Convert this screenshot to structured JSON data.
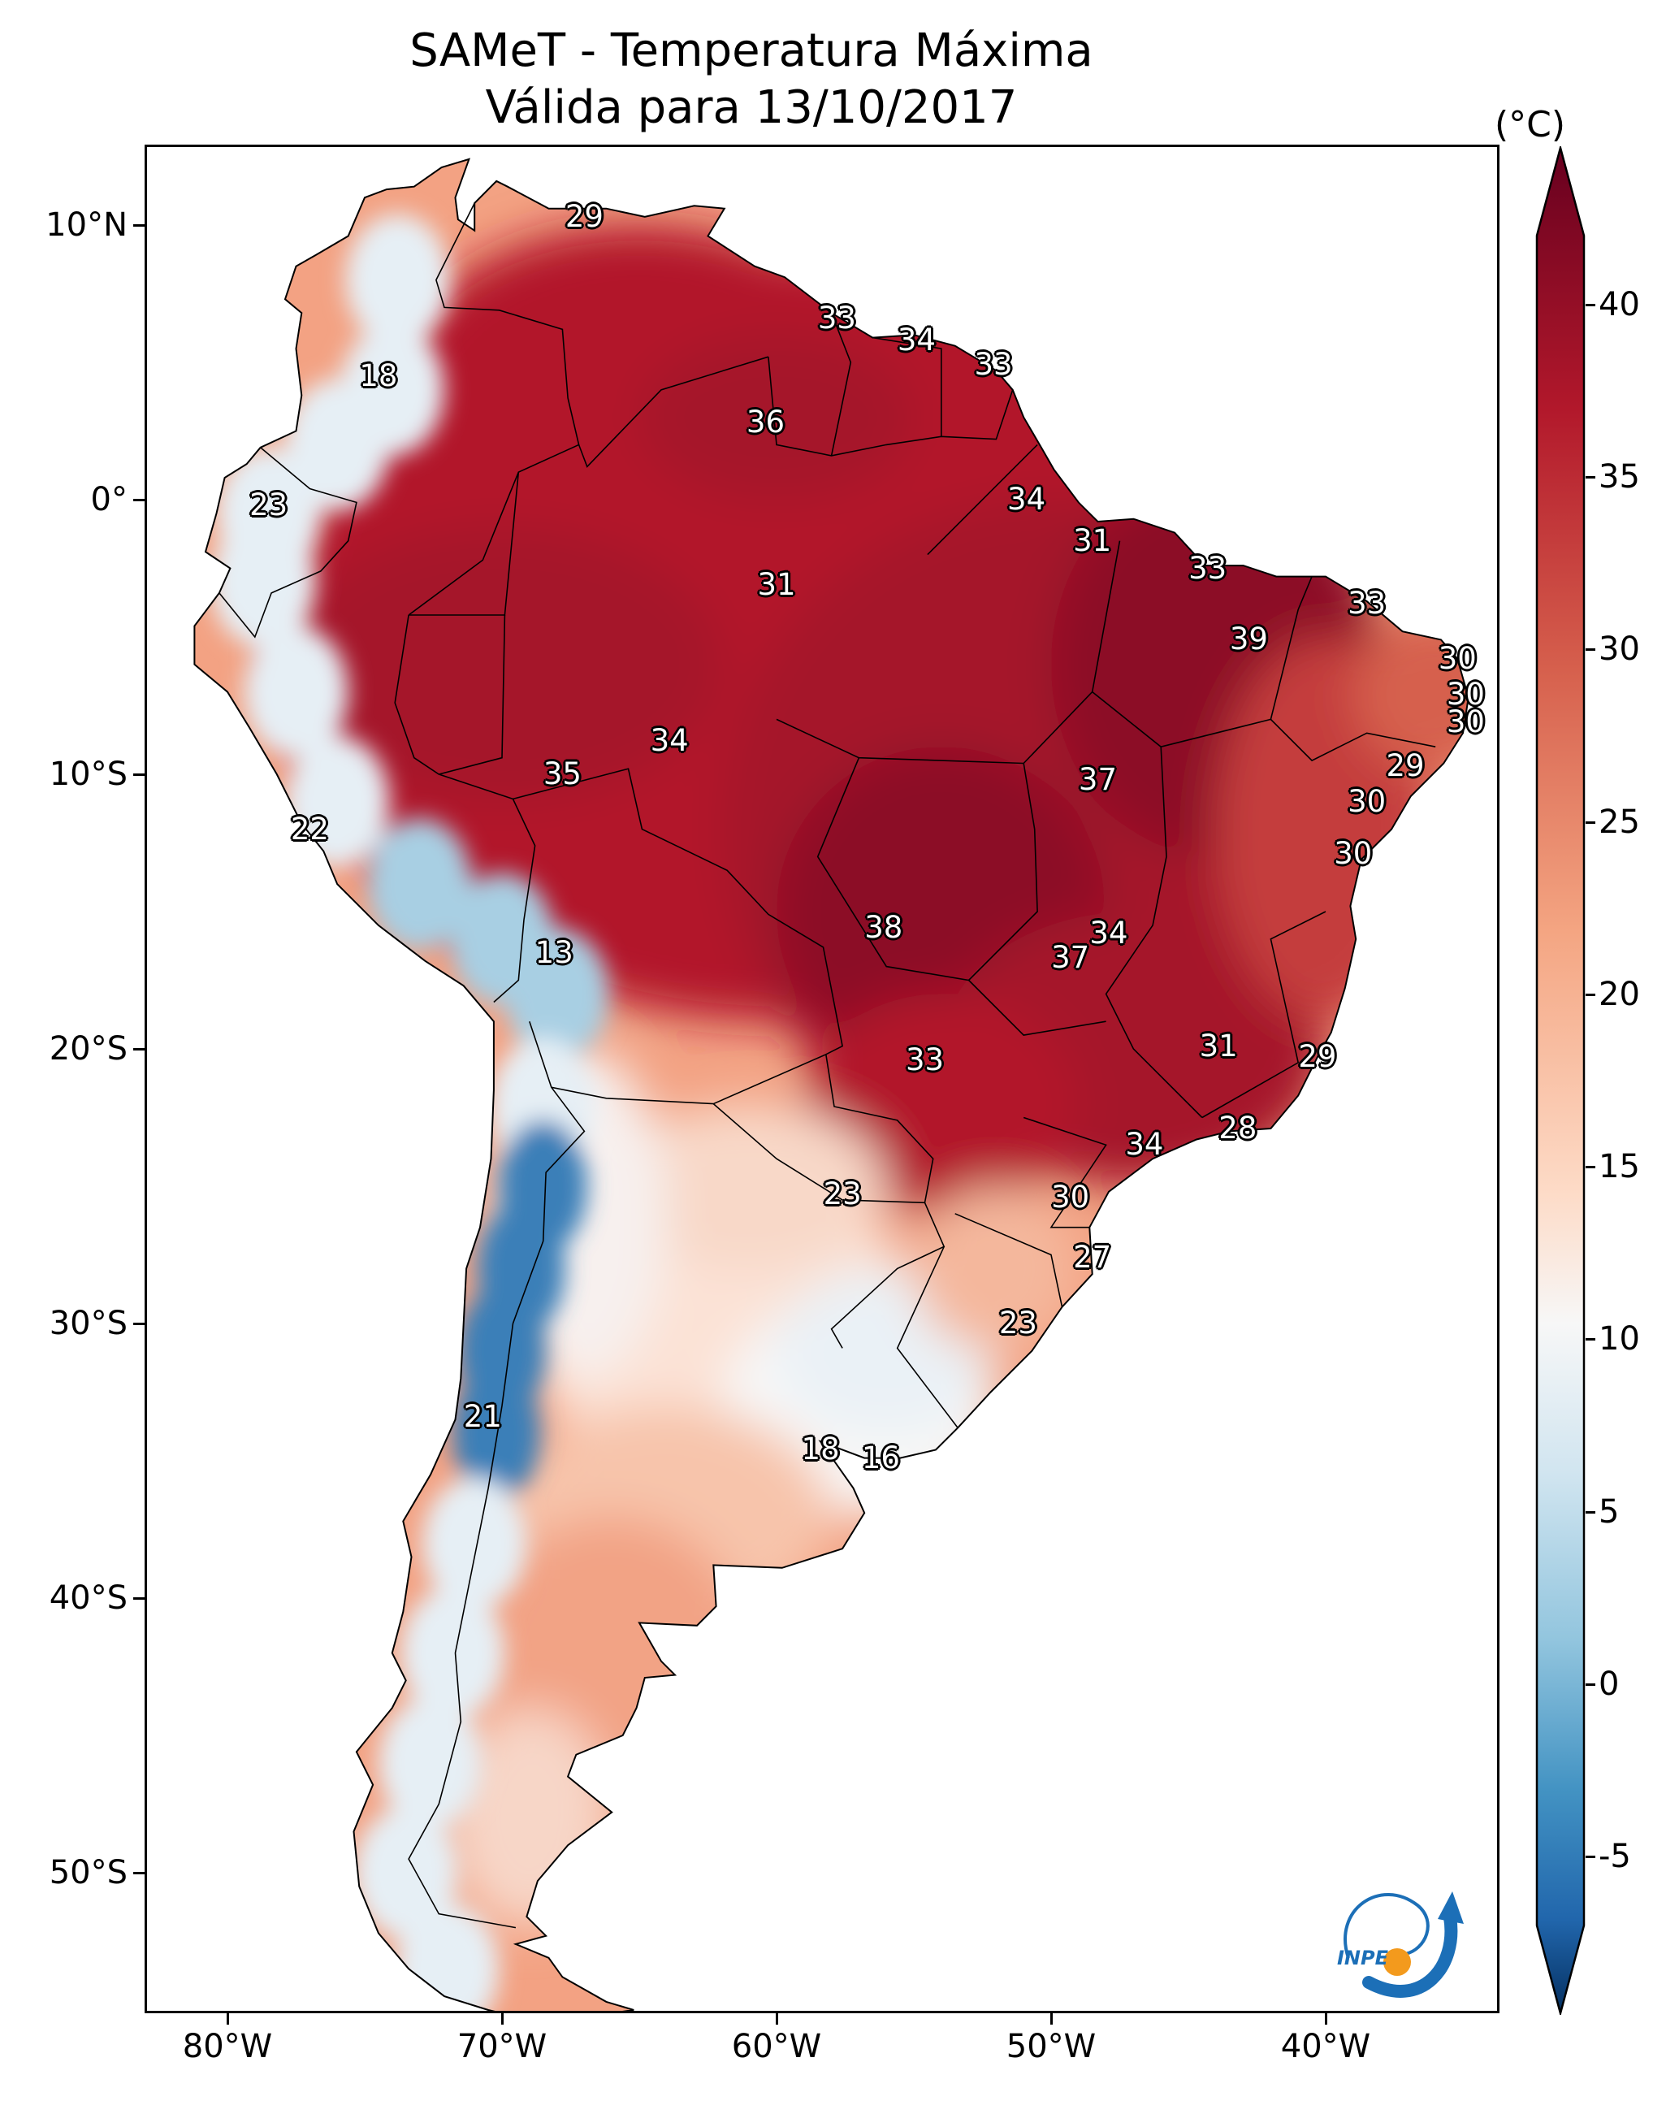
{
  "header": {
    "title_line1": "SAMeT - Temperatura Máxima",
    "title_line2": "Válida para 13/10/2017"
  },
  "axes": {
    "lat_labels": [
      "10°N",
      "0°",
      "10°S",
      "20°S",
      "30°S",
      "40°S",
      "50°S"
    ],
    "lon_labels": [
      "80°W",
      "70°W",
      "60°W",
      "50°W",
      "40°W"
    ]
  },
  "colorbar": {
    "unit": "(°C)",
    "ticks": [
      "40",
      "35",
      "30",
      "25",
      "20",
      "15",
      "10",
      "5",
      "0",
      "-5"
    ],
    "range": [
      -7,
      42
    ],
    "colors": {
      "max": "#67001f",
      "warm": "#d6604d",
      "mid": "#f7f7f7",
      "cool": "#92c5de",
      "min": "#053061"
    }
  },
  "city_values": [
    {
      "v": "29",
      "lon": -67,
      "lat": 10.3
    },
    {
      "v": "18",
      "lon": -74.5,
      "lat": 4.5
    },
    {
      "v": "33",
      "lon": -57.8,
      "lat": 6.6
    },
    {
      "v": "34",
      "lon": -54.9,
      "lat": 5.8
    },
    {
      "v": "33",
      "lon": -52.1,
      "lat": 4.9
    },
    {
      "v": "36",
      "lon": -60.4,
      "lat": 2.8
    },
    {
      "v": "23",
      "lon": -78.5,
      "lat": -0.2
    },
    {
      "v": "34",
      "lon": -50.9,
      "lat": 0.0
    },
    {
      "v": "31",
      "lon": -48.5,
      "lat": -1.5
    },
    {
      "v": "33",
      "lon": -44.3,
      "lat": -2.5
    },
    {
      "v": "31",
      "lon": -60.0,
      "lat": -3.1
    },
    {
      "v": "33",
      "lon": -38.5,
      "lat": -3.8
    },
    {
      "v": "39",
      "lon": -42.8,
      "lat": -5.1
    },
    {
      "v": "30",
      "lon": -35.2,
      "lat": -5.8
    },
    {
      "v": "30",
      "lon": -34.9,
      "lat": -7.1
    },
    {
      "v": "30",
      "lon": -34.9,
      "lat": -8.1
    },
    {
      "v": "34",
      "lon": -63.9,
      "lat": -8.8
    },
    {
      "v": "35",
      "lon": -67.8,
      "lat": -10.0
    },
    {
      "v": "37",
      "lon": -48.3,
      "lat": -10.2
    },
    {
      "v": "29",
      "lon": -37.1,
      "lat": -9.7
    },
    {
      "v": "30",
      "lon": -38.5,
      "lat": -11.0
    },
    {
      "v": "22",
      "lon": -77.0,
      "lat": -12.0
    },
    {
      "v": "30",
      "lon": -39.0,
      "lat": -12.9
    },
    {
      "v": "38",
      "lon": -56.1,
      "lat": -15.6
    },
    {
      "v": "34",
      "lon": -47.9,
      "lat": -15.8
    },
    {
      "v": "37",
      "lon": -49.3,
      "lat": -16.7
    },
    {
      "v": "13",
      "lon": -68.1,
      "lat": -16.5
    },
    {
      "v": "31",
      "lon": -43.9,
      "lat": -19.9
    },
    {
      "v": "29",
      "lon": -40.3,
      "lat": -20.3
    },
    {
      "v": "33",
      "lon": -54.6,
      "lat": -20.4
    },
    {
      "v": "28",
      "lon": -43.2,
      "lat": -22.9
    },
    {
      "v": "34",
      "lon": -46.6,
      "lat": -23.5
    },
    {
      "v": "23",
      "lon": -57.6,
      "lat": -25.3
    },
    {
      "v": "30",
      "lon": -49.3,
      "lat": -25.4
    },
    {
      "v": "27",
      "lon": -48.5,
      "lat": -27.6
    },
    {
      "v": "23",
      "lon": -51.2,
      "lat": -30.0
    },
    {
      "v": "21",
      "lon": -70.7,
      "lat": -33.4
    },
    {
      "v": "18",
      "lon": -58.4,
      "lat": -34.6
    },
    {
      "v": "16",
      "lon": -56.2,
      "lat": -34.9
    }
  ],
  "logo": {
    "text": "INPE"
  }
}
